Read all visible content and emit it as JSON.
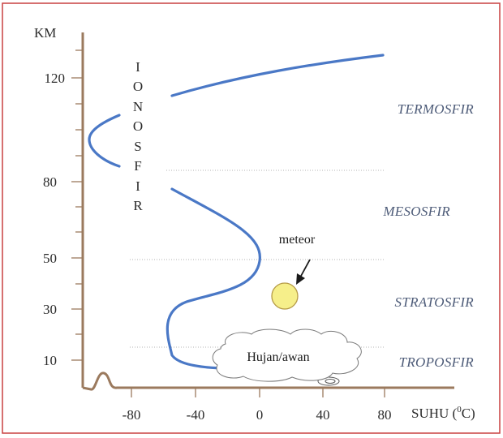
{
  "axes": {
    "y_unit": "KM",
    "x_label": "SUHU (",
    "x_label_sup": "0",
    "x_label_end": "C)",
    "y_ticks": [
      "10",
      "30",
      "50",
      "80",
      "120"
    ],
    "x_ticks": [
      "-80",
      "-40",
      "0",
      "40",
      "80"
    ]
  },
  "layers": {
    "thermosphere": "TERMOSFIR",
    "mesosphere": "MESOSFIR",
    "stratosphere": "STRATOSFIR",
    "troposphere": "TROPOSFIR"
  },
  "ionosphere_letters": [
    "I",
    "O",
    "N",
    "O",
    "S",
    "F",
    "I",
    "R"
  ],
  "meteor_label": "meteor",
  "cloud_label": "Hujan/awan",
  "colors": {
    "frame": "#c94040",
    "axis": "#9b7a5e",
    "curve": "#4a78c6",
    "meteor_fill": "#f6ef8a",
    "meteor_stroke": "#b59a46",
    "boundary": "#9a9a9a"
  }
}
